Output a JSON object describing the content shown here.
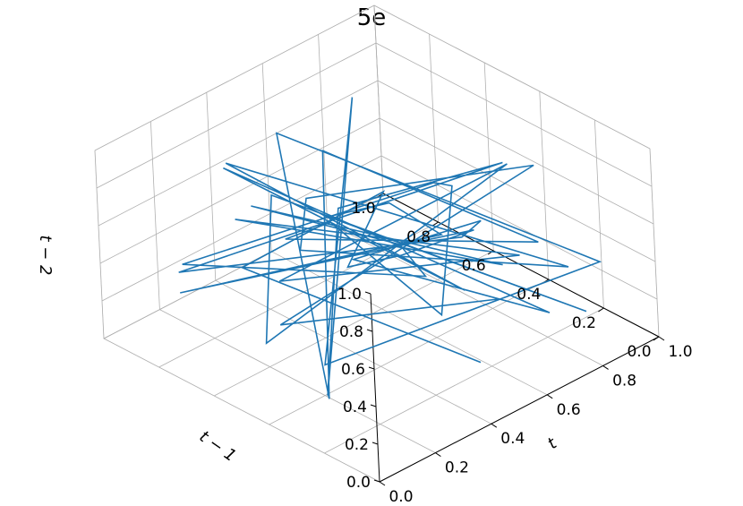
{
  "chart_data": {
    "type": "line",
    "title": "5e",
    "xlabel": "t",
    "ylabel": "t − 1",
    "zlabel": "t − 2",
    "xlim": [
      0,
      1
    ],
    "ylim": [
      0,
      1
    ],
    "zlim": [
      0,
      1
    ],
    "xticks": [
      "0.0",
      "0.2",
      "0.4",
      "0.6",
      "0.8",
      "1.0"
    ],
    "yticks": [
      "0.0",
      "0.2",
      "0.4",
      "0.6",
      "0.8",
      "1.0"
    ],
    "zticks": [
      "0.0",
      "0.2",
      "0.4",
      "0.6",
      "0.8",
      "1.0"
    ],
    "grid": true,
    "color": "#1f77b4",
    "series": [
      {
        "points": [
          [
            0.58,
            0.22,
            0.02
          ],
          [
            0.1,
            0.58,
            0.62
          ],
          [
            0.4,
            0.36,
            0.96
          ],
          [
            0.62,
            0.74,
            0.1
          ],
          [
            0.3,
            0.2,
            0.82
          ],
          [
            0.86,
            0.52,
            0.28
          ],
          [
            0.18,
            0.9,
            0.18
          ],
          [
            0.52,
            0.28,
            0.7
          ],
          [
            0.7,
            0.66,
            0.44
          ],
          [
            0.24,
            0.4,
            0.92
          ],
          [
            0.92,
            0.18,
            0.06
          ],
          [
            0.44,
            0.82,
            0.56
          ],
          [
            0.06,
            0.46,
            0.34
          ],
          [
            0.78,
            0.3,
            0.86
          ],
          [
            0.36,
            0.72,
            0.24
          ],
          [
            0.64,
            0.12,
            0.62
          ],
          [
            0.14,
            0.64,
            0.8
          ],
          [
            0.88,
            0.44,
            0.14
          ],
          [
            0.48,
            0.94,
            0.38
          ],
          [
            0.26,
            0.16,
            0.94
          ],
          [
            0.74,
            0.58,
            0.08
          ],
          [
            0.08,
            0.78,
            0.5
          ],
          [
            0.56,
            0.34,
            0.9
          ],
          [
            0.96,
            0.7,
            0.3
          ],
          [
            0.32,
            0.08,
            0.58
          ],
          [
            0.68,
            0.86,
            0.2
          ],
          [
            0.2,
            0.52,
            0.74
          ],
          [
            0.82,
            0.24,
            0.46
          ],
          [
            0.42,
            0.6,
            0.98
          ],
          [
            0.12,
            0.3,
            0.12
          ],
          [
            0.6,
            0.96,
            0.66
          ],
          [
            0.9,
            0.1,
            0.4
          ],
          [
            0.28,
            0.48,
            0.04
          ],
          [
            0.72,
            0.8,
            0.88
          ],
          [
            0.04,
            0.22,
            0.26
          ],
          [
            0.54,
            0.68,
            0.52
          ],
          [
            0.84,
            0.38,
            0.76
          ],
          [
            0.16,
            0.88,
            0.32
          ],
          [
            0.46,
            0.14,
            0.84
          ],
          [
            0.98,
            0.62,
            0.16
          ],
          [
            0.34,
            0.42,
            0.6
          ],
          [
            0.66,
            0.04,
            0.36
          ],
          [
            0.22,
            0.76,
            0.92
          ],
          [
            0.8,
            0.5,
            0.02
          ],
          [
            0.38,
            0.92,
            0.7
          ],
          [
            0.94,
            0.26,
            0.22
          ],
          [
            0.1,
            0.36,
            0.88
          ],
          [
            0.58,
            0.84,
            0.42
          ],
          [
            0.76,
            0.18,
            0.96
          ],
          [
            0.3,
            0.66,
            0.1
          ],
          [
            0.5,
            0.06,
            0.54
          ]
        ]
      }
    ]
  }
}
